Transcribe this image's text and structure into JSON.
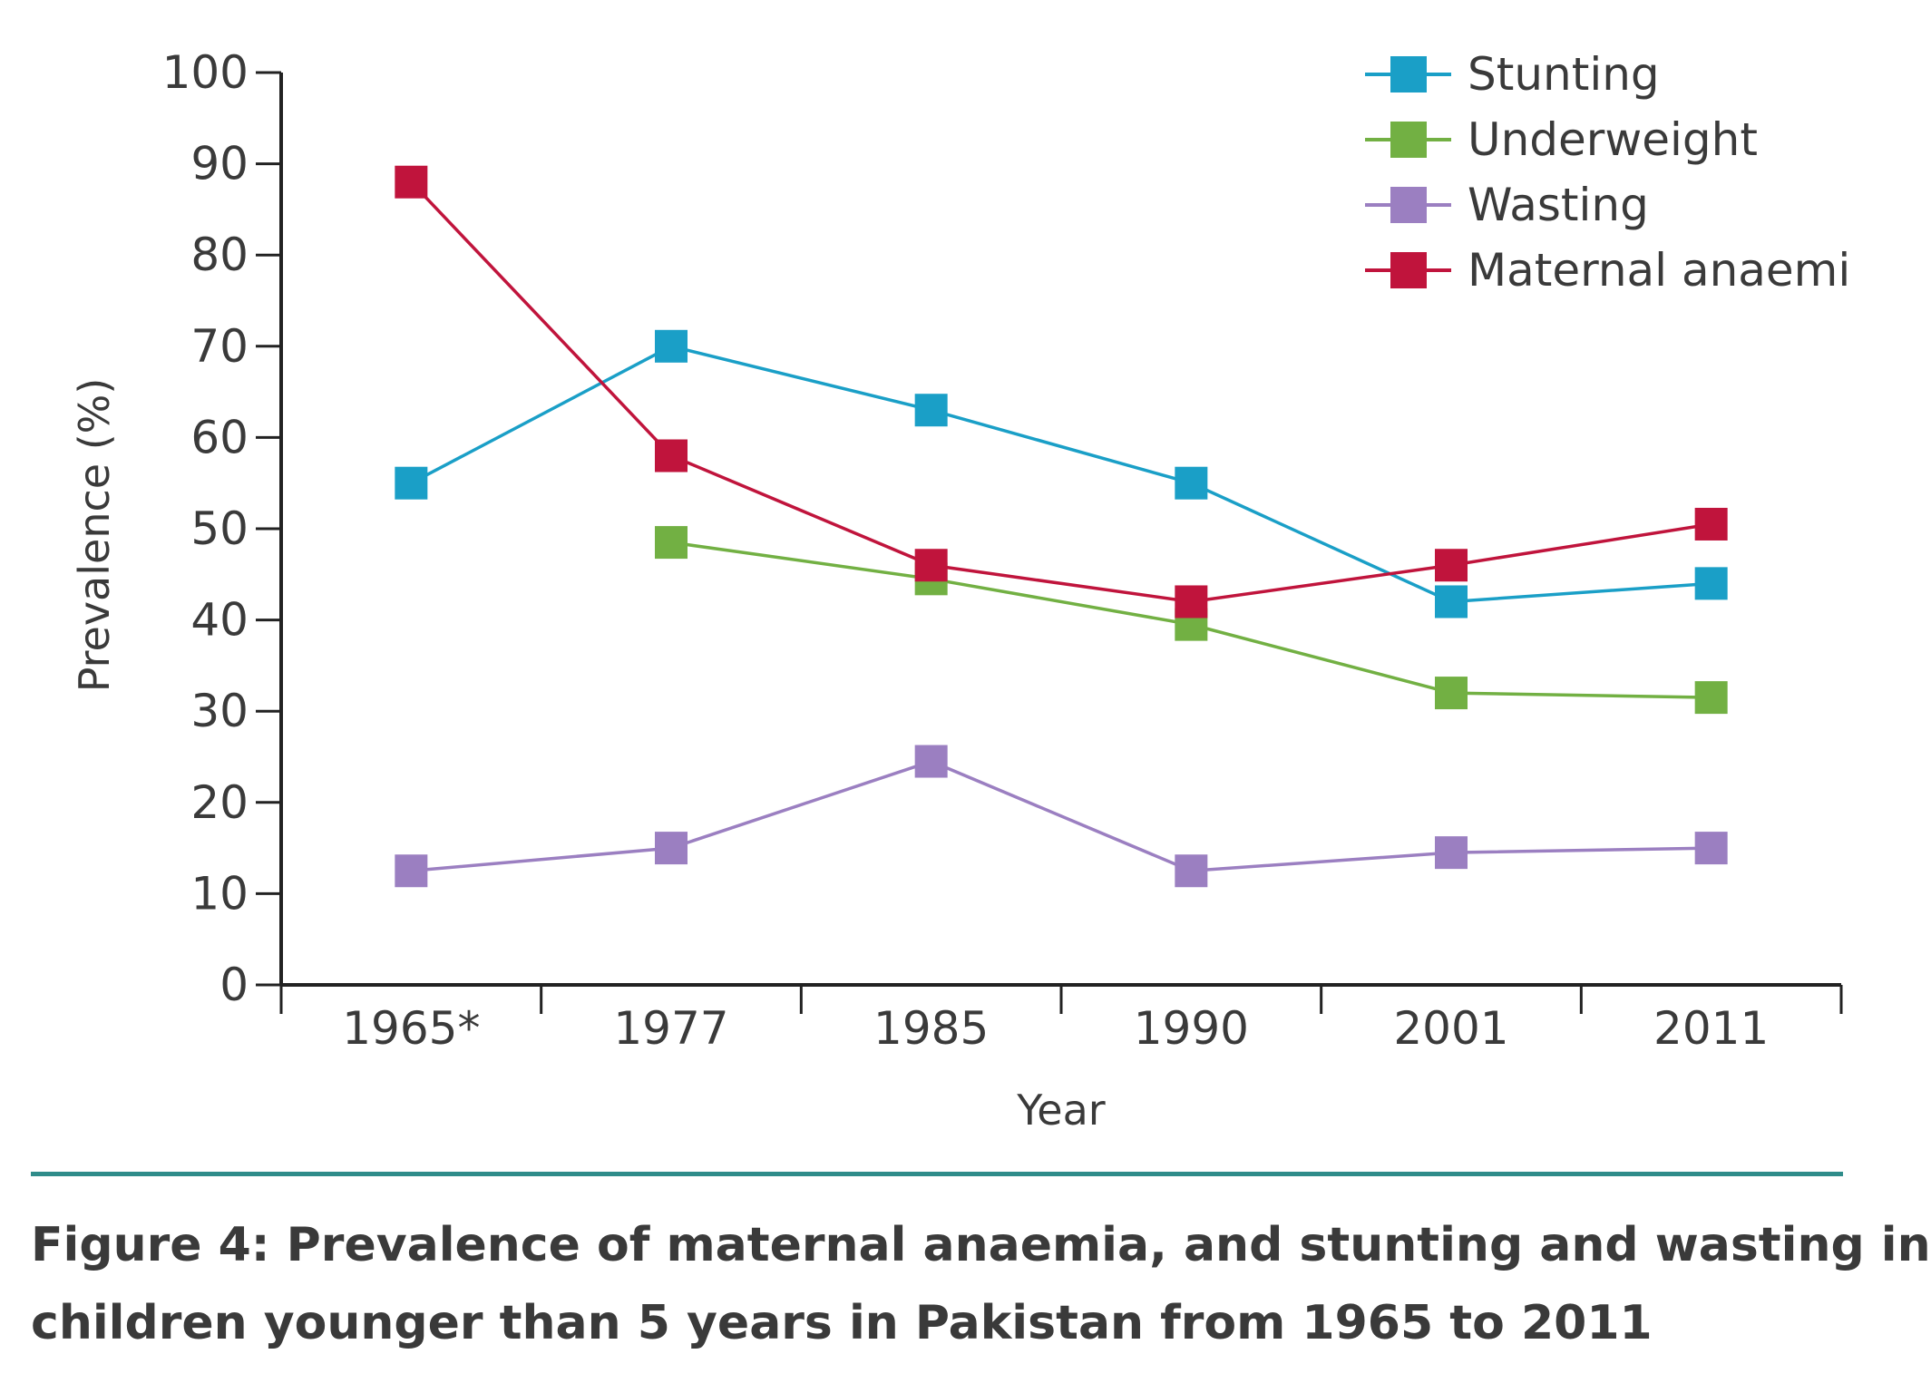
{
  "chart_data": {
    "type": "line",
    "xlabel": "Year",
    "ylabel": "Prevalence (%)",
    "categories": [
      "1965*",
      "1977",
      "1985",
      "1990",
      "2001",
      "2011"
    ],
    "ylim": [
      0,
      100
    ],
    "yticks": [
      0,
      10,
      20,
      30,
      40,
      50,
      60,
      70,
      80,
      90,
      100
    ],
    "grid": false,
    "legend_position": "top-right",
    "series": [
      {
        "name": "Stunting",
        "color": "#1a9fc7",
        "values": [
          55,
          70,
          63,
          55,
          42,
          44
        ]
      },
      {
        "name": "Underweight",
        "color": "#72b043",
        "values": [
          null,
          48.5,
          44.5,
          39.5,
          32,
          31.5
        ]
      },
      {
        "name": "Wasting",
        "color": "#9b7fc1",
        "values": [
          12.5,
          15,
          24.5,
          12.5,
          14.5,
          15
        ]
      },
      {
        "name": "Maternal anaemi",
        "color": "#c0143c",
        "values": [
          88,
          58,
          46,
          42,
          46,
          50.5
        ]
      }
    ]
  },
  "caption": {
    "line1": "Figure 4: Prevalence of maternal anaemia, and stunting and wasting in",
    "line2": "children younger than 5 years in Pakistan from 1965 to 2011"
  }
}
